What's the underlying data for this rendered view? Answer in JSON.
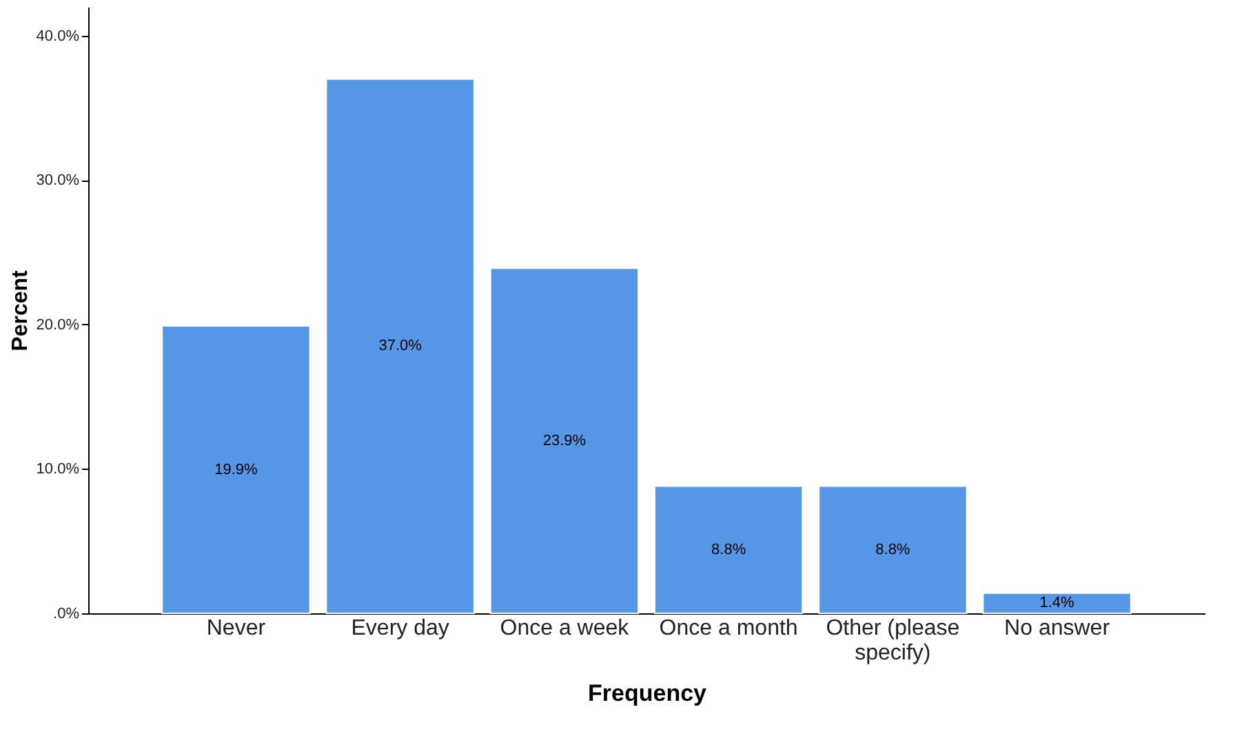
{
  "chart_data": {
    "type": "bar",
    "xlabel": "Frequency",
    "ylabel": "Percent",
    "categories": [
      "Never",
      "Every day",
      "Once a week",
      "Once a month",
      "Other (please specify)",
      "No answer"
    ],
    "values": [
      19.9,
      37.0,
      23.9,
      8.8,
      8.8,
      1.4
    ],
    "value_labels": [
      "19.9%",
      "37.0%",
      "23.9%",
      "8.8%",
      "8.8%",
      "1.4%"
    ],
    "color": "#5596e6",
    "ylim": [
      0,
      42
    ],
    "yticks": [
      {
        "value": 0,
        "label": ".0%"
      },
      {
        "value": 10,
        "label": "10.0%"
      },
      {
        "value": 20,
        "label": "20.0%"
      },
      {
        "value": 30,
        "label": "30.0%"
      },
      {
        "value": 40,
        "label": "40.0%"
      }
    ],
    "grid": false
  }
}
